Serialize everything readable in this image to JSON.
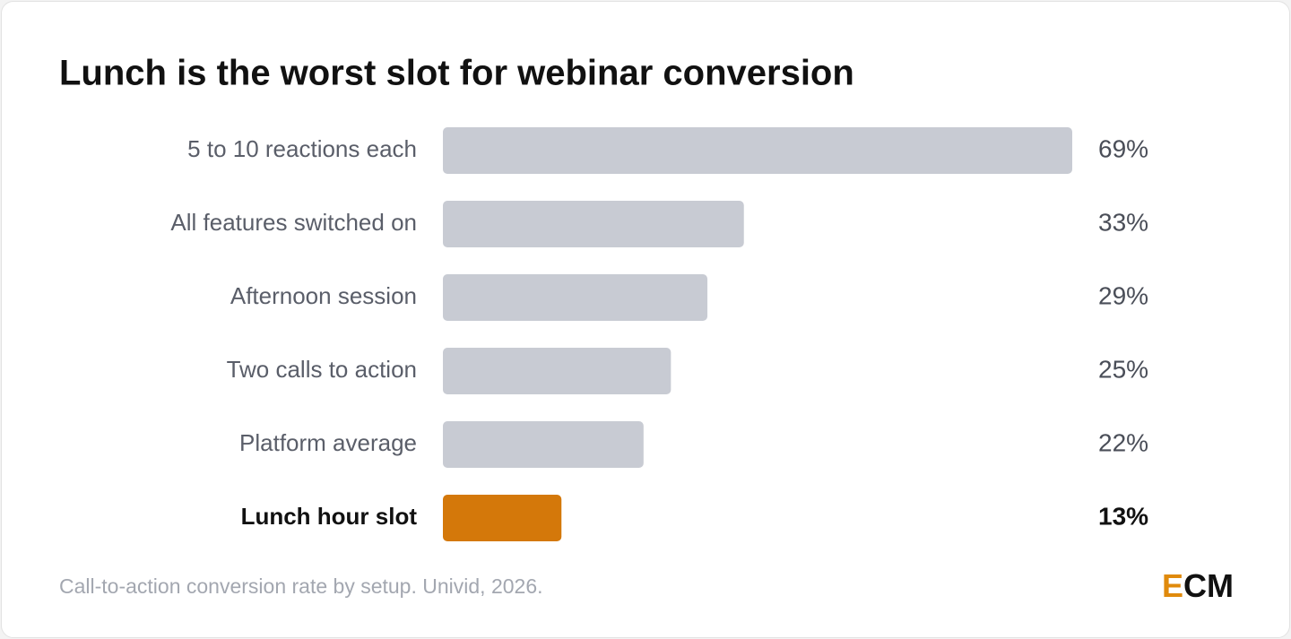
{
  "chart_data": {
    "type": "bar",
    "orientation": "horizontal",
    "title": "Lunch is the worst slot for webinar conversion",
    "categories": [
      "5 to 10 reactions each",
      "All features switched on",
      "Afternoon session",
      "Two calls to action",
      "Platform average",
      "Lunch hour slot"
    ],
    "values": [
      69,
      33,
      29,
      25,
      22,
      13
    ],
    "value_labels": [
      "69%",
      "33%",
      "29%",
      "25%",
      "22%",
      "13%"
    ],
    "colors": [
      "#c8cbd3",
      "#c8cbd3",
      "#c8cbd3",
      "#c8cbd3",
      "#c8cbd3",
      "#d4780a"
    ],
    "caption": "Call-to-action conversion rate by setup. Univid, 2026.",
    "logo": "ECM"
  }
}
